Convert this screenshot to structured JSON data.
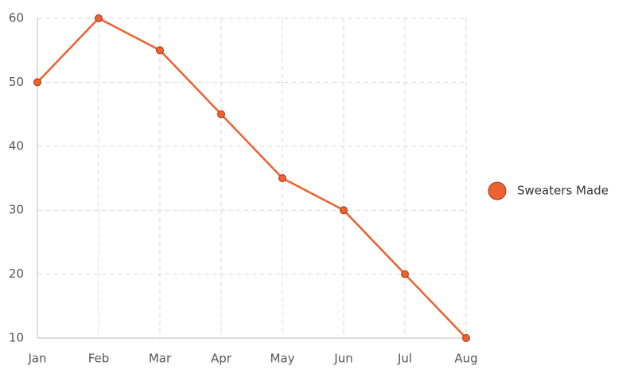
{
  "chart_data": {
    "type": "line",
    "categories": [
      "Jan",
      "Feb",
      "Mar",
      "Apr",
      "May",
      "Jun",
      "Jul",
      "Aug"
    ],
    "series": [
      {
        "name": "Sweaters Made",
        "color": "#ee6130",
        "values": [
          50,
          60,
          55,
          45,
          35,
          30,
          20,
          10
        ]
      }
    ],
    "ylim": [
      10,
      60
    ],
    "yticks": [
      10,
      20,
      30,
      40,
      50,
      60
    ],
    "grid": true,
    "legend": "right"
  }
}
